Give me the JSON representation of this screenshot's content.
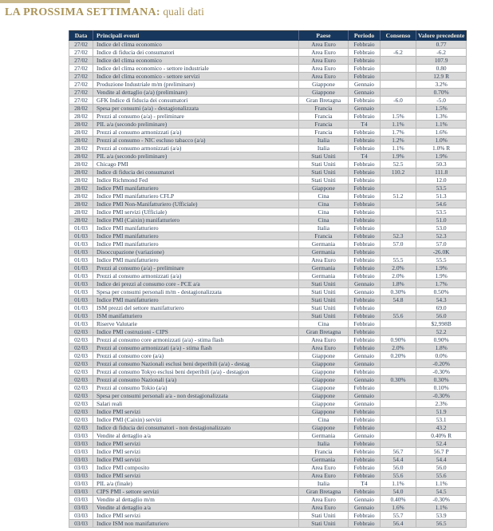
{
  "title": {
    "main": "LA PROSSIMA SETTIMANA:",
    "sub": " quali dati"
  },
  "colors": {
    "header_bg": "#17375d",
    "header_text": "#f2ede0",
    "stripe": "#d9d9d9",
    "title_gold": "#ab9457",
    "body_text": "#2f4156",
    "top_rule": "#c9b98c"
  },
  "table": {
    "headers": [
      "Data",
      "Principali eventi",
      "Paese",
      "Periodo",
      "Consenso",
      "Valore precedente"
    ],
    "rows": [
      [
        "27/02",
        "Indice del clima economico",
        "Area Euro",
        "Febbraio",
        "",
        "0.77"
      ],
      [
        "27/02",
        "Indice di fiducia dei consumatori",
        "Area Euro",
        "Febbraio",
        "-6.2",
        "-6.2"
      ],
      [
        "27/02",
        "Indice del clima economico",
        "Area Euro",
        "Febbraio",
        "",
        "107.9"
      ],
      [
        "27/02",
        "Indice del clima economico - settore industriale",
        "Area Euro",
        "Febbraio",
        "",
        "0.80"
      ],
      [
        "27/02",
        "Indice del clima economico - settore servizi",
        "Area Euro",
        "Febbraio",
        "",
        "12.9 R"
      ],
      [
        "27/02",
        "Produzione Industriale m/m (preliminare)",
        "Giappone",
        "Gennaio",
        "",
        "3.2%"
      ],
      [
        "27/02",
        "Vendite al dettaglio (a/a)  (preliminare)",
        "Giappone",
        "Gennaio",
        "",
        "0.70%"
      ],
      [
        "27/02",
        "GFK Indice di fiducia dei consumatori",
        "Gran Bretagna",
        "Febbraio",
        "-6.0",
        "-5.0"
      ],
      [
        "28/02",
        "Spesa per consumi  (a/a) - destagionalizzata",
        "Francia",
        "Gennaio",
        "",
        "1.5%"
      ],
      [
        "28/02",
        "Prezzi al consumo (a/a) - preliminare",
        "Francia",
        "Febbraio",
        "1.5%",
        "1.3%"
      ],
      [
        "28/02",
        "PIL a/a (secondo preliminare)",
        "Francia",
        "T4",
        "1.1%",
        "1.1%"
      ],
      [
        "28/02",
        "Prezzi al consumo armonizzati (a/a)",
        "Francia",
        "Febbraio",
        "1.7%",
        "1.6%"
      ],
      [
        "28/02",
        "Prezzi al consumo - NIC escluso tabacco (a/a)",
        "Italia",
        "Febbraio",
        "1.2%",
        "1.0%"
      ],
      [
        "28/02",
        "Prezzi al consumo armonizzati (a/a)",
        "Italia",
        "Febbraio",
        "1.1%",
        "1.0% R"
      ],
      [
        "28/02",
        "PIL a/a (secondo preliminare)",
        "Stati Uniti",
        "T4",
        "1.9%",
        "1.9%"
      ],
      [
        "28/02",
        "Chicago PMI",
        "Stati Uniti",
        "Febbraio",
        "52.5",
        "50.3"
      ],
      [
        "28/02",
        "Indice di fiducia dei consumatori",
        "Stati Uniti",
        "Febbraio",
        "110.2",
        "111.8"
      ],
      [
        "28/02",
        "Indice Richmond Fed",
        "Stati Uniti",
        "Febbraio",
        "",
        "12.0"
      ],
      [
        "28/02",
        "Indice PMI manifatturiero",
        "Giappone",
        "Febbraio",
        "",
        "53.5"
      ],
      [
        "28/02",
        "Indice PMI manifatturiero CFLP",
        "Cina",
        "Febbraio",
        "51.2",
        "51.3"
      ],
      [
        "28/02",
        "Indice PMI  Non-Manifatturiero (Ufficiale)",
        "Cina",
        "Febbraio",
        "",
        "54.6"
      ],
      [
        "28/02",
        "Indice PMI  servizi (Ufficiale)",
        "Cina",
        "Febbraio",
        "",
        "53.5"
      ],
      [
        "28/02",
        "Indice PMI (Caixin) manifatturiero",
        "Cina",
        "Febbraio",
        "",
        "51.0"
      ],
      [
        "01/03",
        "Indice PMI manifatturiero",
        "Italia",
        "Febbraio",
        "",
        "53.0"
      ],
      [
        "01/03",
        "Indice PMI manifatturiero",
        "Francia",
        "Febbraio",
        "52.3",
        "52.3"
      ],
      [
        "01/03",
        "Indice PMI manifatturiero",
        "Germania",
        "Febbraio",
        "57.0",
        "57.0"
      ],
      [
        "01/03",
        "Disoccupazione (variazione)",
        "Germania",
        "Febbraio",
        "",
        "-26.0K"
      ],
      [
        "01/03",
        "Indice PMI manifatturiero",
        "Area Euro",
        "Febbraio",
        "55.5",
        "55.5"
      ],
      [
        "01/03",
        "Prezzi al consumo (a/a) - preliminare",
        "Germania",
        "Febbraio",
        "2.0%",
        "1.9%"
      ],
      [
        "01/03",
        "Prezzi al consumo armonizzati (a/a)",
        "Germania",
        "Febbraio",
        "2.0%",
        "1.9%"
      ],
      [
        "01/03",
        "Indice dei prezzi al consumo core - PCE a/a",
        "Stati Uniti",
        "Gennaio",
        "1.8%",
        "1.7%"
      ],
      [
        "01/03",
        "Spesa per consumi personali m/m - destagionalizzata",
        "Stati Uniti",
        "Gennaio",
        "0.30%",
        "0.50%"
      ],
      [
        "01/03",
        "Indice PMI manifatturiero",
        "Stati Uniti",
        "Febbraio",
        "54.8",
        "54.3"
      ],
      [
        "01/03",
        "ISM  prezzi del settore manifatturiero",
        "Stati Uniti",
        "Febbraio",
        "",
        "69.0"
      ],
      [
        "01/03",
        "ISM manifatturiero",
        "Stati Uniti",
        "Febbraio",
        "55.6",
        "56.0"
      ],
      [
        "01/03",
        "Riserve Valutarie",
        "Cina",
        "Febbraio",
        "",
        "$2,998B"
      ],
      [
        "02/03",
        "Indice PMI costruzioni - CIPS",
        "Gran Bretagna",
        "Febbraio",
        "",
        "52.2"
      ],
      [
        "02/03",
        "Prezzi al consumo core armonizzati (a/a) - stima flash",
        "Area Euro",
        "Febbraio",
        "0.90%",
        "0.90%"
      ],
      [
        "02/03",
        "Prezzi al consumo armonizzati (a/a) - stima flash",
        "Area Euro",
        "Febbraio",
        "2.0%",
        "1.8%"
      ],
      [
        "02/03",
        "Prezzi al consumo core  (a/a)",
        "Giappone",
        "Gennaio",
        "0.20%",
        "0.0%"
      ],
      [
        "02/03",
        "Prezzi al consumo Nazionali esclusi beni deperibili (a/a) - destag",
        "Giappone",
        "Gennaio",
        "",
        "-0.20%"
      ],
      [
        "02/03",
        "Prezzi al consumo Tokyo esclusi beni deperibili (a/a) - destagion",
        "Giappone",
        "Febbraio",
        "",
        "-0.30%"
      ],
      [
        "02/03",
        "Prezzi al consumo Nazionali (a/a)",
        "Giappone",
        "Gennaio",
        "0.30%",
        "0.30%"
      ],
      [
        "02/03",
        "Prezzi al consumo Tokio (a/a)",
        "Giappone",
        "Febbraio",
        "",
        "0.10%"
      ],
      [
        "02/03",
        "Spesa per consumi personali a/a - non destagionalizzata",
        "Giappone",
        "Gennaio",
        "",
        "-0.30%"
      ],
      [
        "02/03",
        "Salari reali",
        "Giappone",
        "Gennaio",
        "",
        "2.3%"
      ],
      [
        "02/03",
        "Indice PMI servizi",
        "Giappone",
        "Febbraio",
        "",
        "51.9"
      ],
      [
        "02/03",
        "Indice PMI (Caixin) servizi",
        "Cina",
        "Febbraio",
        "",
        "53.1"
      ],
      [
        "02/03",
        "Indice di fiducia dei consumatori - non destagionalizzato",
        "Giappone",
        "Febbraio",
        "",
        "43.2"
      ],
      [
        "03/03",
        "Vendite al dettaglio a/a",
        "Germania",
        "Gennaio",
        "",
        "0.40% R"
      ],
      [
        "03/03",
        "Indice PMI servizi",
        "Italia",
        "Febbraio",
        "",
        "52.4"
      ],
      [
        "03/03",
        "Indice PMI servizi",
        "Francia",
        "Febbraio",
        "56.7",
        "56.7 P"
      ],
      [
        "03/03",
        "Indice PMI servizi",
        "Germania",
        "Febbraio",
        "54.4",
        "54.4"
      ],
      [
        "03/03",
        "Indice PMI composito",
        "Area Euro",
        "Febbraio",
        "56.0",
        "56.0"
      ],
      [
        "03/03",
        "Indice PMI servizi",
        "Area Euro",
        "Febbraio",
        "55.6",
        "55.6"
      ],
      [
        "03/03",
        "PIL a/a (finale)",
        "Italia",
        "T4",
        "1.1%",
        "1.1%"
      ],
      [
        "03/03",
        "CIPS PMI - settore servizi",
        "Gran Bretagna",
        "Febbraio",
        "54.0",
        "54.5"
      ],
      [
        "03/03",
        "Vendite al dettaglio m/m",
        "Area Euro",
        "Gennaio",
        "0.40%",
        "-0.30%"
      ],
      [
        "03/03",
        "Vendite al dettaglio a/a",
        "Area Euro",
        "Gennaio",
        "1.6%",
        "1.1%"
      ],
      [
        "03/03",
        "Indice PMI servizi",
        "Stati Uniti",
        "Febbraio",
        "55.7",
        "53.9"
      ],
      [
        "03/03",
        "Indice ISM non manifatturiero",
        "Stati Uniti",
        "Febbraio",
        "56.4",
        "56.5"
      ]
    ]
  }
}
